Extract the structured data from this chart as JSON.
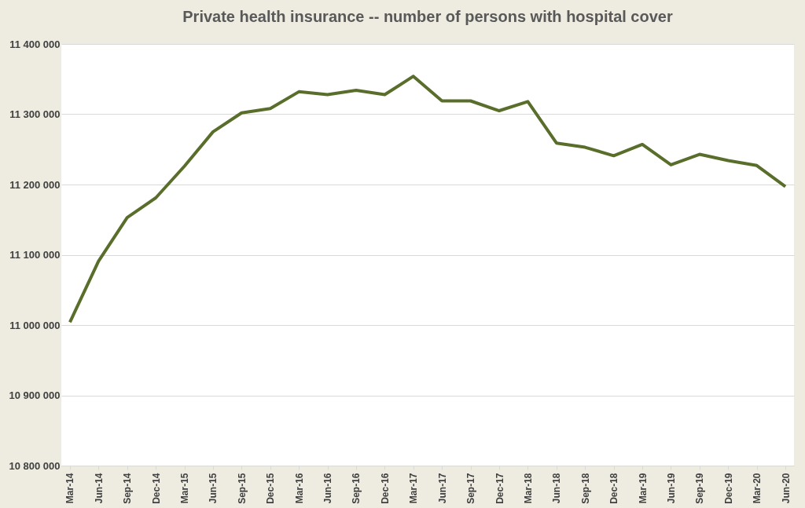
{
  "chart_data": {
    "type": "line",
    "title": "Private health insurance -- number of persons with hospital cover",
    "categories": [
      "Mar-14",
      "Jun-14",
      "Sep-14",
      "Dec-14",
      "Mar-15",
      "Jun-15",
      "Sep-15",
      "Dec-15",
      "Mar-16",
      "Jun-16",
      "Sep-16",
      "Dec-16",
      "Mar-17",
      "Jun-17",
      "Sep-17",
      "Dec-17",
      "Mar-18",
      "Jun-18",
      "Sep-18",
      "Dec-18",
      "Mar-19",
      "Jun-19",
      "Sep-19",
      "Dec-19",
      "Mar-20",
      "Jun-20"
    ],
    "series": [
      {
        "color": "#5a6e2c",
        "values": [
          11004000,
          11091000,
          11153000,
          11181000,
          11226000,
          11275000,
          11302000,
          11308000,
          11332000,
          11328000,
          11334000,
          11328000,
          11354000,
          11319000,
          11319000,
          11305000,
          11318000,
          11259000,
          11253000,
          11241000,
          11257000,
          11228000,
          11243000,
          11234000,
          11227000,
          11197000
        ]
      }
    ],
    "ylim": [
      10800000,
      11400000
    ],
    "yticks": [
      {
        "value": 10800000,
        "label": "10 800 000"
      },
      {
        "value": 10900000,
        "label": "10 900 000"
      },
      {
        "value": 11000000,
        "label": "11 000 000"
      },
      {
        "value": 11100000,
        "label": "11 100 000"
      },
      {
        "value": 11200000,
        "label": "11 200 000"
      },
      {
        "value": 11300000,
        "label": "11 300 000"
      },
      {
        "value": 11400000,
        "label": "11 400 000"
      }
    ],
    "grid": "y",
    "marker": "none",
    "line_style": "solid"
  }
}
